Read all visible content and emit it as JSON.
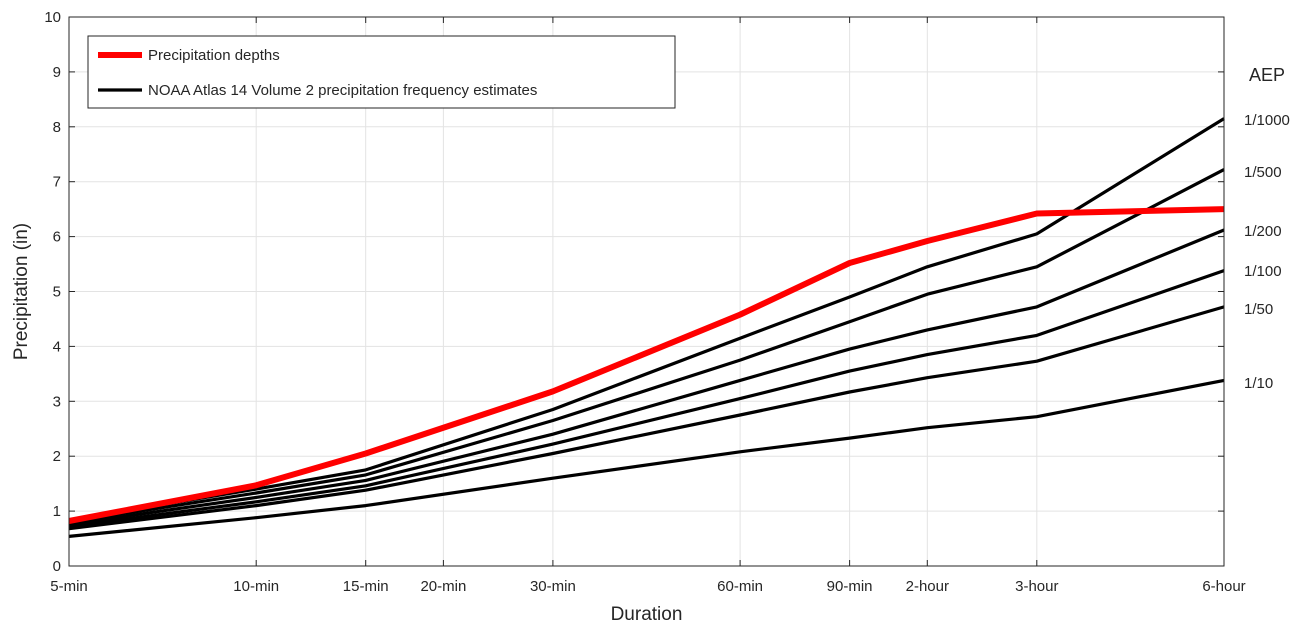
{
  "chart_data": {
    "type": "line",
    "xlabel": "Duration",
    "ylabel": "Precipitation (in)",
    "ylim": [
      0,
      10
    ],
    "yticks": [
      "0",
      "1",
      "2",
      "3",
      "4",
      "5",
      "6",
      "7",
      "8",
      "9",
      "10"
    ],
    "x_minutes": [
      5,
      10,
      15,
      20,
      30,
      60,
      90,
      120,
      180,
      360
    ],
    "categories": [
      "5-min",
      "10-min",
      "15-min",
      "20-min",
      "30-min",
      "60-min",
      "90-min",
      "2-hour",
      "3-hour",
      "6-hour"
    ],
    "x_scale": "log",
    "grid": true,
    "legend_position": "top-left",
    "legend": [
      {
        "label": "Precipitation depths",
        "color": "#ff0000"
      },
      {
        "label": "NOAA Atlas 14 Volume 2 precipitation frequency estimates",
        "color": "#000000"
      }
    ],
    "aep_title": "AEP",
    "series": [
      {
        "name": "Precipitation depths",
        "color": "#ff0000",
        "role": "precip",
        "x": [
          5,
          10,
          15,
          30,
          60,
          90,
          120,
          180,
          360
        ],
        "y": [
          0.82,
          1.47,
          2.05,
          3.18,
          4.58,
          5.52,
          5.92,
          6.42,
          6.5
        ]
      },
      {
        "label": "1/1000",
        "color": "#000000",
        "role": "aep",
        "x": [
          5,
          10,
          15,
          30,
          60,
          90,
          120,
          180,
          360
        ],
        "y": [
          0.84,
          1.4,
          1.75,
          2.85,
          4.15,
          4.9,
          5.45,
          6.05,
          8.15
        ]
      },
      {
        "label": "1/500",
        "color": "#000000",
        "role": "aep",
        "x": [
          5,
          10,
          15,
          30,
          60,
          90,
          120,
          180,
          360
        ],
        "y": [
          0.8,
          1.33,
          1.66,
          2.65,
          3.75,
          4.45,
          4.95,
          5.45,
          7.22
        ]
      },
      {
        "label": "1/200",
        "color": "#000000",
        "role": "aep",
        "x": [
          5,
          10,
          15,
          30,
          60,
          90,
          120,
          180,
          360
        ],
        "y": [
          0.76,
          1.25,
          1.56,
          2.4,
          3.38,
          3.95,
          4.3,
          4.72,
          6.12
        ]
      },
      {
        "label": "1/100",
        "color": "#000000",
        "role": "aep",
        "x": [
          5,
          10,
          15,
          30,
          60,
          90,
          120,
          180,
          360
        ],
        "y": [
          0.72,
          1.17,
          1.46,
          2.22,
          3.05,
          3.55,
          3.85,
          4.2,
          5.38
        ]
      },
      {
        "label": "1/50",
        "color": "#000000",
        "role": "aep",
        "x": [
          5,
          10,
          15,
          30,
          60,
          90,
          120,
          180,
          360
        ],
        "y": [
          0.68,
          1.1,
          1.38,
          2.05,
          2.75,
          3.17,
          3.43,
          3.73,
          4.72
        ]
      },
      {
        "label": "1/10",
        "color": "#000000",
        "role": "aep",
        "x": [
          5,
          10,
          15,
          30,
          60,
          90,
          120,
          180,
          360
        ],
        "y": [
          0.54,
          0.88,
          1.1,
          1.6,
          2.08,
          2.33,
          2.52,
          2.72,
          3.38
        ]
      }
    ]
  }
}
